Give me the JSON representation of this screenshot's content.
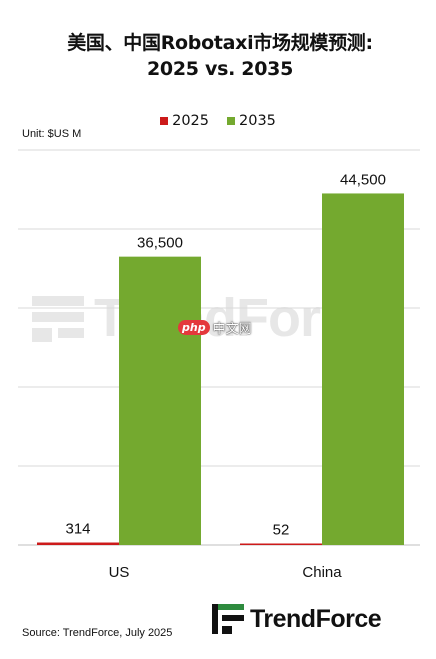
{
  "title_line1": "美国、中国Robotaxi市场规模预测:",
  "title_line2": "2025 vs. 2035",
  "unit_label": "Unit: $US M",
  "source_label": "Source: TrendForce, July 2025",
  "brand_name": "TrendForce",
  "php_badge": "php",
  "php_text": "中文网",
  "colors": {
    "s2025": "#cc1a1a",
    "s2035": "#74a92f",
    "grid": "#d9d9d9"
  },
  "chart_data": {
    "type": "bar",
    "title": "美国、中国Robotaxi市场规模预测: 2025 vs. 2035",
    "categories": [
      "US",
      "China"
    ],
    "series": [
      {
        "name": "2025",
        "values": [
          314,
          52
        ],
        "labels": [
          "314",
          "52"
        ]
      },
      {
        "name": "2035",
        "values": [
          36500,
          44500
        ],
        "labels": [
          "36,500",
          "44,500"
        ]
      }
    ],
    "ylim": [
      0,
      50000
    ],
    "grid": true,
    "legend": "top",
    "xlabel": "",
    "ylabel": ""
  }
}
